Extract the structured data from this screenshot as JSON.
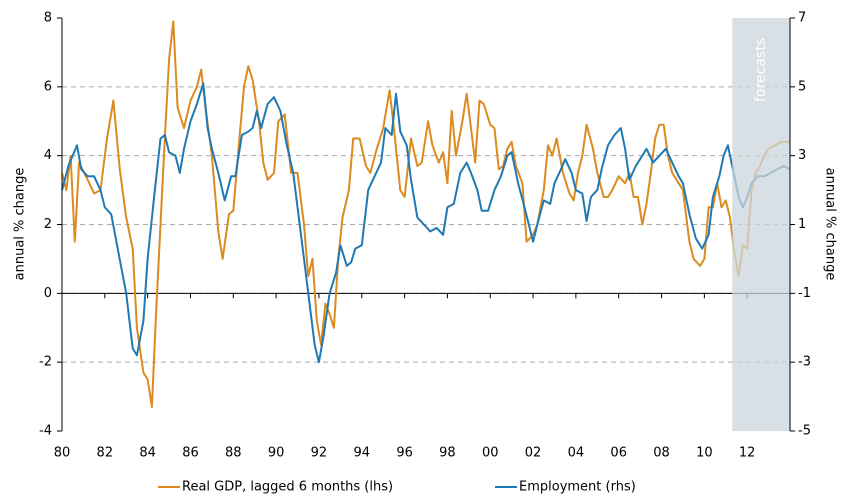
{
  "chart_data": {
    "type": "line",
    "ylabel": "annual % change",
    "y2label": "annual % change",
    "xlim": [
      1980,
      2014
    ],
    "xticks": [
      {
        "value": 1980,
        "label": "80"
      },
      {
        "value": 1982,
        "label": "82"
      },
      {
        "value": 1984,
        "label": "84"
      },
      {
        "value": 1986,
        "label": "86"
      },
      {
        "value": 1988,
        "label": "88"
      },
      {
        "value": 1990,
        "label": "90"
      },
      {
        "value": 1992,
        "label": "92"
      },
      {
        "value": 1994,
        "label": "94"
      },
      {
        "value": 1996,
        "label": "96"
      },
      {
        "value": 1998,
        "label": "98"
      },
      {
        "value": 2000,
        "label": "00"
      },
      {
        "value": 2002,
        "label": "02"
      },
      {
        "value": 2004,
        "label": "04"
      },
      {
        "value": 2006,
        "label": "06"
      },
      {
        "value": 2008,
        "label": "08"
      },
      {
        "value": 2010,
        "label": "10"
      },
      {
        "value": 2012,
        "label": "12"
      }
    ],
    "ylim": [
      -4,
      8
    ],
    "yticks": [
      -4,
      -2,
      0,
      2,
      4,
      6,
      8
    ],
    "y2lim": [
      -5,
      7
    ],
    "y2ticks": [
      -5,
      -3,
      -1,
      1,
      3,
      5,
      7
    ],
    "grid": true,
    "legend": "bottom",
    "forecast": {
      "label": "forecasts",
      "start": 2011.3,
      "color": "#ccd6dc"
    },
    "series": [
      {
        "name": "Real GDP, lagged 6 months (lhs)",
        "color": "#dd8a1f",
        "axis": "y",
        "x": [
          1980.0,
          1980.2,
          1980.4,
          1980.6,
          1980.8,
          1981.2,
          1981.5,
          1981.8,
          1982.1,
          1982.4,
          1982.7,
          1983.0,
          1983.3,
          1983.5,
          1983.8,
          1984.0,
          1984.2,
          1984.4,
          1984.6,
          1984.8,
          1985.0,
          1985.2,
          1985.4,
          1985.7,
          1986.0,
          1986.3,
          1986.5,
          1986.7,
          1987.0,
          1987.3,
          1987.5,
          1987.8,
          1988.0,
          1988.3,
          1988.5,
          1988.7,
          1988.9,
          1989.2,
          1989.4,
          1989.6,
          1989.9,
          1990.1,
          1990.4,
          1990.7,
          1991.0,
          1991.3,
          1991.5,
          1991.7,
          1991.9,
          1992.1,
          1992.3,
          1992.5,
          1992.7,
          1992.9,
          1993.1,
          1993.4,
          1993.6,
          1993.9,
          1994.2,
          1994.4,
          1994.7,
          1995.0,
          1995.3,
          1995.5,
          1995.8,
          1996.0,
          1996.3,
          1996.6,
          1996.8,
          1997.1,
          1997.3,
          1997.6,
          1997.8,
          1998.0,
          1998.2,
          1998.4,
          1998.7,
          1998.9,
          1999.1,
          1999.3,
          1999.5,
          1999.7,
          2000.0,
          2000.2,
          2000.4,
          2000.6,
          2000.8,
          2001.0,
          2001.2,
          2001.5,
          2001.7,
          2002.0,
          2002.2,
          2002.5,
          2002.7,
          2002.9,
          2003.1,
          2003.4,
          2003.7,
          2003.9,
          2004.1,
          2004.3,
          2004.5,
          2004.8,
          2005.0,
          2005.3,
          2005.5,
          2005.7,
          2006.0,
          2006.3,
          2006.5,
          2006.7,
          2006.9,
          2007.1,
          2007.3,
          2007.5,
          2007.7,
          2007.9,
          2008.1,
          2008.3,
          2008.5,
          2008.8,
          2009.0,
          2009.3,
          2009.5,
          2009.8,
          2010.0,
          2010.2,
          2010.4,
          2010.6,
          2010.8,
          2011.0,
          2011.2,
          2011.4,
          2011.6,
          2011.8,
          2012.0,
          2012.2,
          2012.4,
          2012.6,
          2012.8,
          2013.0,
          2013.3,
          2013.6,
          2014.0
        ],
        "values": [
          3.5,
          3.0,
          4.0,
          1.5,
          3.8,
          3.3,
          2.9,
          3.0,
          4.5,
          5.6,
          3.6,
          2.2,
          1.3,
          -1.0,
          -2.3,
          -2.5,
          -3.3,
          -0.5,
          2.0,
          4.5,
          6.8,
          7.9,
          5.4,
          4.8,
          5.6,
          6.0,
          6.5,
          5.4,
          4.0,
          1.8,
          1.0,
          2.3,
          2.4,
          4.6,
          6.0,
          6.6,
          6.2,
          5.0,
          3.8,
          3.3,
          3.5,
          5.0,
          5.2,
          3.5,
          3.5,
          2.0,
          0.5,
          1.0,
          -0.8,
          -1.5,
          -0.3,
          -0.6,
          -1.0,
          1.0,
          2.2,
          3.0,
          4.5,
          4.5,
          3.7,
          3.5,
          4.2,
          4.8,
          5.9,
          4.8,
          3.0,
          2.8,
          4.5,
          3.7,
          3.8,
          5.0,
          4.3,
          3.8,
          4.1,
          3.2,
          5.3,
          4.0,
          5.0,
          5.8,
          4.8,
          3.8,
          5.6,
          5.5,
          4.9,
          4.8,
          3.6,
          3.7,
          4.2,
          4.4,
          3.7,
          3.2,
          1.5,
          1.7,
          2.0,
          3.0,
          4.3,
          4.0,
          4.5,
          3.5,
          2.9,
          2.7,
          3.5,
          4.0,
          4.9,
          4.2,
          3.5,
          2.8,
          2.8,
          3.0,
          3.4,
          3.2,
          3.5,
          2.8,
          2.8,
          2.0,
          2.6,
          3.5,
          4.5,
          4.9,
          4.9,
          4.0,
          3.5,
          3.2,
          3.0,
          1.5,
          1.0,
          0.8,
          1.0,
          2.5,
          2.5,
          3.2,
          2.5,
          2.7,
          2.2,
          1.2,
          0.5,
          1.4,
          1.3,
          3.0,
          3.5,
          3.7,
          4.0,
          4.2,
          4.3,
          4.4,
          4.4
        ]
      },
      {
        "name": "Employment (rhs)",
        "color": "#1f7ab4",
        "axis": "y2",
        "x": [
          1980.0,
          1980.3,
          1980.7,
          1980.9,
          1981.2,
          1981.5,
          1981.8,
          1982.0,
          1982.3,
          1982.6,
          1983.0,
          1983.3,
          1983.5,
          1983.8,
          1984.0,
          1984.3,
          1984.6,
          1984.8,
          1985.0,
          1985.3,
          1985.5,
          1985.7,
          1986.0,
          1986.3,
          1986.6,
          1986.8,
          1987.0,
          1987.3,
          1987.6,
          1987.9,
          1988.1,
          1988.4,
          1988.7,
          1988.9,
          1989.1,
          1989.3,
          1989.6,
          1989.9,
          1990.2,
          1990.5,
          1990.8,
          1991.0,
          1991.3,
          1991.6,
          1991.8,
          1992.0,
          1992.2,
          1992.5,
          1992.8,
          1993.0,
          1993.3,
          1993.5,
          1993.7,
          1994.0,
          1994.3,
          1994.6,
          1994.9,
          1995.1,
          1995.4,
          1995.6,
          1995.8,
          1996.1,
          1996.3,
          1996.6,
          1996.9,
          1997.2,
          1997.5,
          1997.8,
          1998.0,
          1998.3,
          1998.6,
          1998.9,
          1999.1,
          1999.4,
          1999.6,
          1999.9,
          2000.2,
          2000.5,
          2000.8,
          2001.0,
          2001.3,
          2001.6,
          2002.0,
          2002.2,
          2002.5,
          2002.8,
          2003.0,
          2003.3,
          2003.5,
          2003.8,
          2004.0,
          2004.3,
          2004.5,
          2004.7,
          2005.0,
          2005.2,
          2005.5,
          2005.8,
          2006.1,
          2006.3,
          2006.5,
          2006.8,
          2007.1,
          2007.3,
          2007.6,
          2007.9,
          2008.2,
          2008.5,
          2008.8,
          2009.0,
          2009.3,
          2009.6,
          2009.9,
          2010.2,
          2010.4,
          2010.7,
          2010.9,
          2011.1,
          2011.3,
          2011.6,
          2011.8,
          2012.0,
          2012.2,
          2012.5,
          2012.8,
          2013.1,
          2013.4,
          2013.7,
          2014.0
        ],
        "values": [
          2.0,
          2.7,
          3.3,
          2.6,
          2.4,
          2.4,
          2.0,
          1.5,
          1.3,
          0.3,
          -1.0,
          -2.6,
          -2.8,
          -1.8,
          0.0,
          1.8,
          3.5,
          3.6,
          3.1,
          3.0,
          2.5,
          3.2,
          4.0,
          4.5,
          5.1,
          3.8,
          3.2,
          2.5,
          1.7,
          2.4,
          2.4,
          3.6,
          3.7,
          3.8,
          4.3,
          3.8,
          4.5,
          4.7,
          4.3,
          3.3,
          2.5,
          1.5,
          0.0,
          -1.5,
          -2.5,
          -3.0,
          -2.3,
          -1.0,
          -0.4,
          0.4,
          -0.2,
          -0.1,
          0.3,
          0.4,
          2.0,
          2.4,
          2.8,
          3.8,
          3.6,
          4.8,
          3.7,
          3.3,
          2.3,
          1.2,
          1.0,
          0.8,
          0.9,
          0.7,
          1.5,
          1.6,
          2.5,
          2.8,
          2.5,
          2.0,
          1.4,
          1.4,
          2.0,
          2.4,
          3.0,
          3.1,
          2.2,
          1.5,
          0.5,
          1.0,
          1.7,
          1.6,
          2.2,
          2.6,
          2.9,
          2.5,
          2.0,
          1.9,
          1.1,
          1.8,
          2.0,
          2.6,
          3.3,
          3.6,
          3.8,
          3.2,
          2.3,
          2.7,
          3.0,
          3.2,
          2.8,
          3.0,
          3.2,
          2.8,
          2.4,
          2.2,
          1.3,
          0.6,
          0.3,
          0.7,
          1.8,
          2.4,
          3.0,
          3.3,
          2.7,
          1.8,
          1.5,
          1.8,
          2.2,
          2.4,
          2.4,
          2.5,
          2.6,
          2.7,
          2.6
        ]
      }
    ]
  }
}
